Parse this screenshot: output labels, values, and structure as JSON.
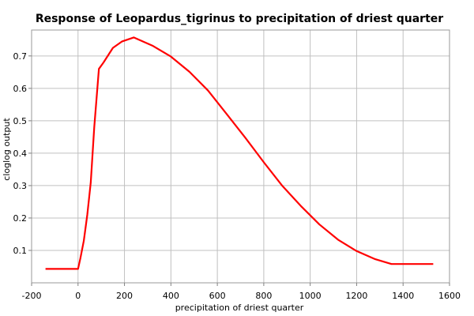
{
  "chart_data": {
    "type": "line",
    "title": "Response of Leopardus_tigrinus to precipitation of driest quarter",
    "xlabel": "precipitation of driest quarter",
    "ylabel": "cloglog output",
    "xlim": [
      -200,
      1600
    ],
    "ylim": [
      0.0,
      0.78
    ],
    "x_ticks": [
      -200,
      0,
      200,
      400,
      600,
      800,
      1000,
      1200,
      1400,
      1600
    ],
    "y_ticks": [
      0.1,
      0.2,
      0.3,
      0.4,
      0.5,
      0.6,
      0.7
    ],
    "x_tick_labels": [
      "-200",
      "0",
      "200",
      "400",
      "600",
      "800",
      "1000",
      "1200",
      "1400",
      "1600"
    ],
    "y_tick_labels": [
      "0.1",
      "0.2",
      "0.3",
      "0.4",
      "0.5",
      "0.6",
      "0.7"
    ],
    "grid": true,
    "line_color": "#ff0000",
    "series": [
      {
        "x": [
          -140,
          0,
          10,
          25,
          40,
          55,
          70,
          90,
          110,
          150,
          190,
          240,
          320,
          400,
          480,
          560,
          640,
          720,
          800,
          880,
          960,
          1040,
          1120,
          1200,
          1280,
          1350,
          1400,
          1530
        ],
        "y": [
          0.043,
          0.043,
          0.075,
          0.13,
          0.21,
          0.31,
          0.48,
          0.66,
          0.68,
          0.725,
          0.745,
          0.757,
          0.732,
          0.698,
          0.651,
          0.593,
          0.521,
          0.448,
          0.372,
          0.299,
          0.237,
          0.18,
          0.133,
          0.098,
          0.073,
          0.058,
          0.058,
          0.058
        ]
      }
    ]
  }
}
